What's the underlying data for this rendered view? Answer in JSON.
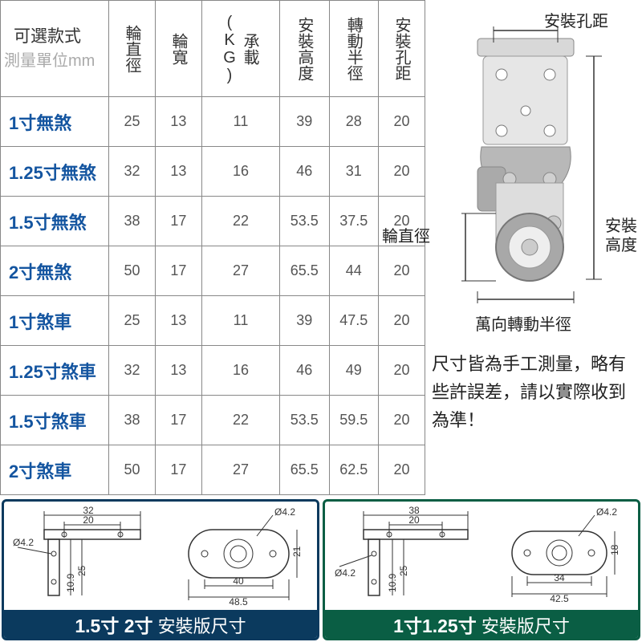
{
  "table": {
    "cornerLine1": "可選款式",
    "cornerLine2": "測量單位mm",
    "headers": [
      "輪直徑",
      "輪寬",
      "承載(KG)",
      "安裝高度",
      "轉動半徑",
      "安裝孔距"
    ],
    "rows": [
      {
        "label": "1寸無煞",
        "cells": [
          "25",
          "13",
          "11",
          "39",
          "28",
          "20"
        ]
      },
      {
        "label": "1.25寸無煞",
        "cells": [
          "32",
          "13",
          "16",
          "46",
          "31",
          "20"
        ]
      },
      {
        "label": "1.5寸無煞",
        "cells": [
          "38",
          "17",
          "22",
          "53.5",
          "37.5",
          "20"
        ]
      },
      {
        "label": "2寸無煞",
        "cells": [
          "50",
          "17",
          "27",
          "65.5",
          "44",
          "20"
        ]
      },
      {
        "label": "1寸煞車",
        "cells": [
          "25",
          "13",
          "11",
          "39",
          "47.5",
          "20"
        ]
      },
      {
        "label": "1.25寸煞車",
        "cells": [
          "32",
          "13",
          "16",
          "46",
          "49",
          "20"
        ]
      },
      {
        "label": "1.5寸煞車",
        "cells": [
          "38",
          "17",
          "22",
          "53.5",
          "59.5",
          "20"
        ]
      },
      {
        "label": "2寸煞車",
        "cells": [
          "50",
          "17",
          "27",
          "65.5",
          "62.5",
          "20"
        ]
      }
    ],
    "rowLabelColor": "#1455a0",
    "borderColor": "#888"
  },
  "diagram": {
    "labels": {
      "holePitch": "安裝孔距",
      "wheelDia": "輪直徑",
      "installHeight": "安裝高度",
      "swivelRadius": "萬向轉動半徑"
    }
  },
  "note": "尺寸皆為手工測量，略有些許誤差，請以實際收到為準！",
  "bottomPanels": {
    "left": {
      "borderColor": "#0b3a5e",
      "footerBold": "1.5寸 2寸",
      "footerText": " 安裝版尺寸",
      "dims": {
        "outerW": "32",
        "innerW": "20",
        "holeD": "Ø4.2",
        "h1": "10.9",
        "h2": "25",
        "plateW": "40",
        "plateOuter": "48.5",
        "plateH": "21"
      }
    },
    "right": {
      "borderColor": "#0a5e44",
      "footerBold": "1寸1.25寸",
      "footerText": " 安裝版尺寸",
      "dims": {
        "outerW": "38",
        "innerW": "20",
        "holeD": "Ø4.2",
        "h1": "10.9",
        "h2": "25",
        "plateW": "34",
        "plateOuter": "42.5",
        "plateH": "18"
      }
    }
  }
}
